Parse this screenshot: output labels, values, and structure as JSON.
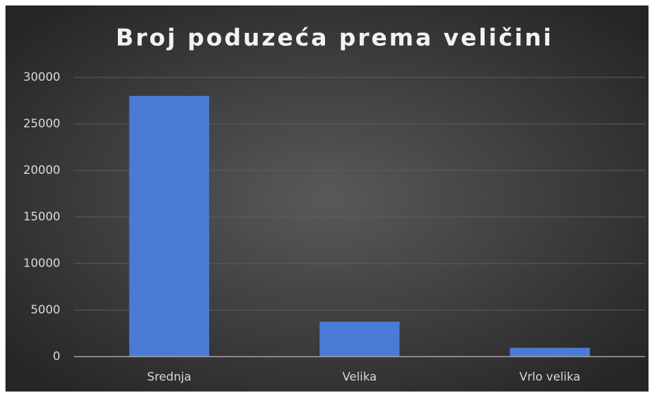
{
  "chart_data": {
    "type": "bar",
    "title": "Broj poduzeća prema veličini",
    "categories": [
      "Srednja",
      "Velika",
      "Vrlo velika"
    ],
    "values": [
      28000,
      3750,
      950
    ],
    "color": "#4a7bd4",
    "ylim": [
      0,
      30000
    ],
    "yticks": [
      0,
      5000,
      10000,
      15000,
      20000,
      25000,
      30000
    ],
    "grid": true
  }
}
